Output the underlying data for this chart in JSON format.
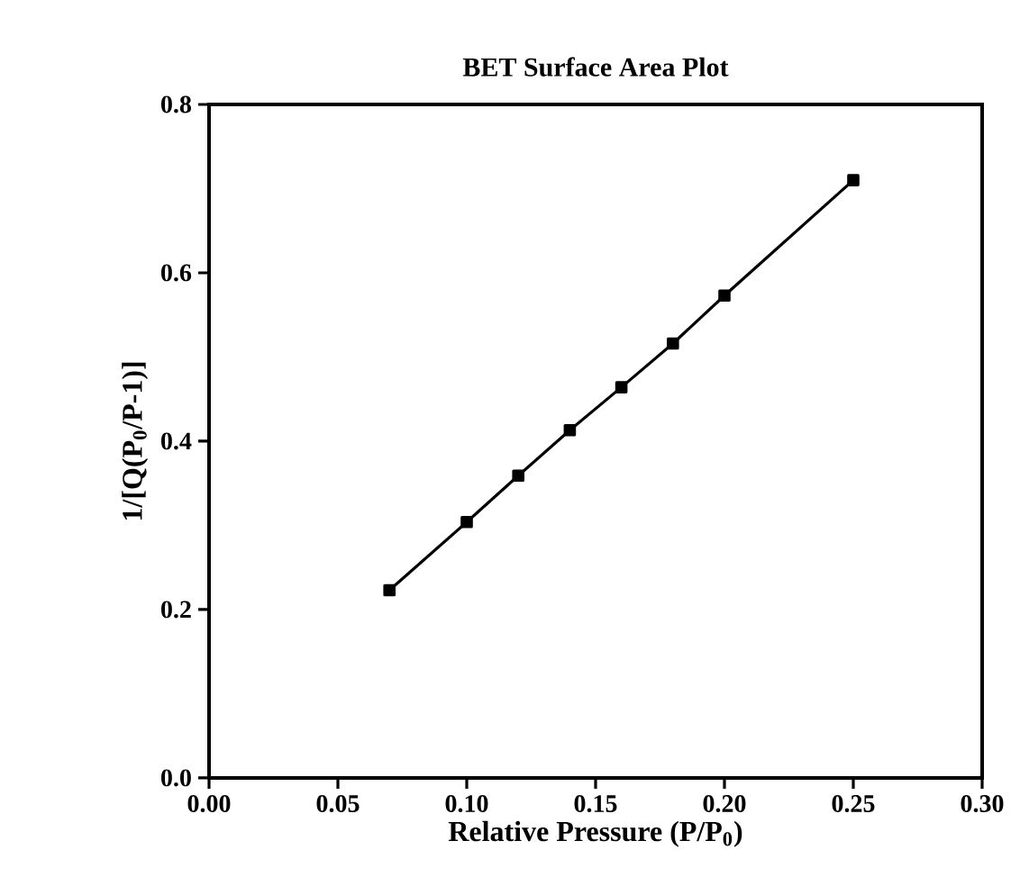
{
  "chart_data": {
    "type": "line",
    "title": "BET Surface Area Plot",
    "xlabel": "Relative Pressure (P/P$_{0}$)",
    "ylabel": "1/[Q(P$_{0}$/P-1)]",
    "x": [
      0.07,
      0.1,
      0.12,
      0.14,
      0.16,
      0.18,
      0.2,
      0.25
    ],
    "series": [
      {
        "color": "#000000",
        "values": [
          0.223,
          0.304,
          0.359,
          0.413,
          0.464,
          0.516,
          0.573,
          0.71
        ]
      }
    ],
    "xlim": [
      0,
      0.3
    ],
    "ylim": [
      0,
      0.8
    ],
    "xticks": [
      {
        "value": 0,
        "label": "0.00"
      },
      {
        "value": 0.05,
        "label": "0.05"
      },
      {
        "value": 0.1,
        "label": "0.10"
      },
      {
        "value": 0.15,
        "label": "0.15"
      },
      {
        "value": 0.2,
        "label": "0.20"
      },
      {
        "value": 0.25,
        "label": "0.25"
      },
      {
        "value": 0.3,
        "label": "0.30"
      }
    ],
    "yticks": [
      {
        "value": 0,
        "label": "0.0"
      },
      {
        "value": 0.2,
        "label": "0.2"
      },
      {
        "value": 0.4,
        "label": "0.4"
      },
      {
        "value": 0.6,
        "label": "0.6"
      },
      {
        "value": 0.8,
        "label": "0.8"
      }
    ],
    "marker": "square",
    "line_style": "solid"
  }
}
